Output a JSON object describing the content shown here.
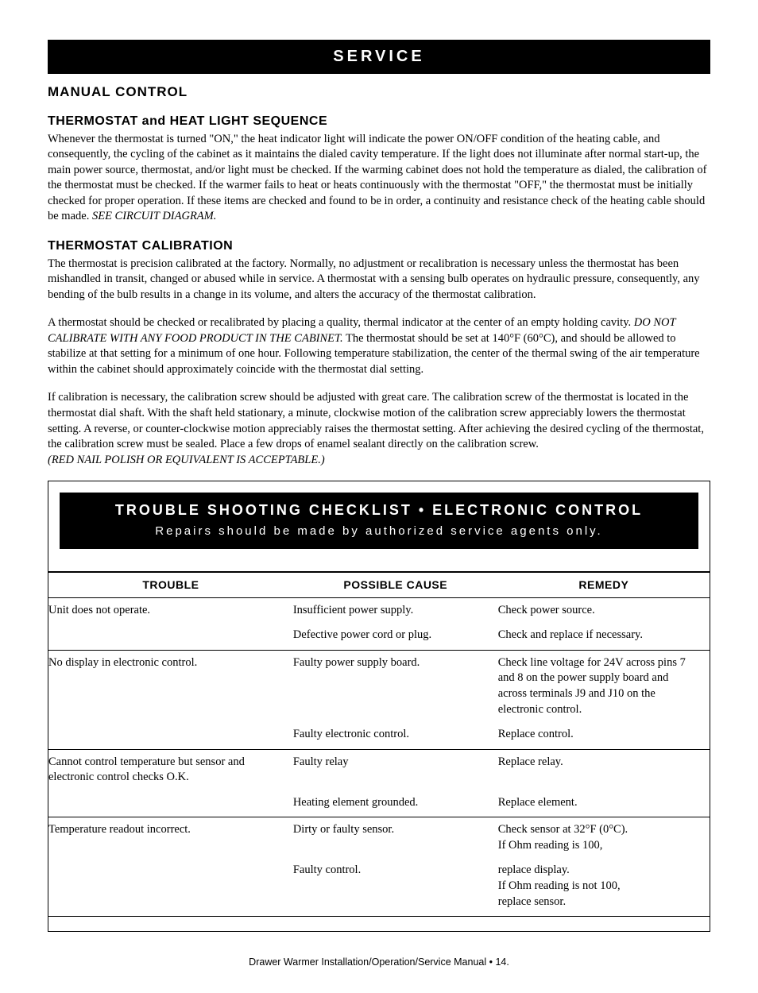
{
  "banner": {
    "title": "SERVICE"
  },
  "section_manual_control": {
    "heading": "MANUAL CONTROL",
    "sub1_heading": "THERMOSTAT and HEAT LIGHT SEQUENCE",
    "sub1_para1": "Whenever the thermostat is turned \"ON,\" the heat indicator light will indicate the power ON/OFF condition of the heating cable, and consequently, the cycling of the cabinet as it maintains the dialed cavity temperature.  If the light does not illuminate after normal start-up, the main power source, thermostat, and/or light must be checked.  If the warming cabinet does not hold the temperature as dialed, the calibration of the thermostat must be checked.  If the warmer fails to heat or heats continuously with the thermostat \"OFF,\" the thermostat must be initially checked for proper operation.  If these items are checked and found to be in order, a continuity and resistance check of the heating cable should be made.  ",
    "sub1_note": "SEE CIRCUIT DIAGRAM.",
    "sub2_heading": "THERMOSTAT CALIBRATION",
    "sub2_para1": "The thermostat is precision calibrated at the factory.  Normally, no adjustment or recalibration is necessary unless the thermostat has been mishandled in transit, changed or abused while in service.  A thermostat with a sensing bulb operates on hydraulic pressure, consequently, any bending of the bulb results in a change in its volume, and alters the accuracy of the thermostat calibration.",
    "sub2_para2a": "A thermostat should be checked or recalibrated by placing a quality, thermal indicator at the center of an empty holding cavity.  ",
    "sub2_para2_note": "DO NOT CALIBRATE WITH ANY FOOD PRODUCT IN THE CABINET.",
    "sub2_para2b": "  The thermostat should be set at 140°F (60°C), and should be allowed to stabilize at that setting for a minimum of one hour.  Following temperature stabilization, the center of the thermal swing of the air temperature within the cabinet should approximately coincide with the thermostat dial setting.",
    "sub2_para3": "If calibration is necessary, the calibration screw should be adjusted with great care.  The calibration screw of the thermostat is located in the thermostat dial shaft.  With the shaft held stationary, a minute, clockwise motion of the calibration screw appreciably lowers the thermostat setting.  A reverse, or counter-clockwise motion appreciably raises the thermostat setting.  After achieving the desired cycling of the thermostat, the calibration screw must be sealed.  Place a few drops of enamel sealant directly on the calibration screw.",
    "sub2_para3_note": "(RED NAIL POLISH OR EQUIVALENT IS ACCEPTABLE.)"
  },
  "troubleshoot": {
    "banner_title": "TROUBLE SHOOTING CHECKLIST • ELECTRONIC CONTROL",
    "banner_sub": "Repairs should be made by authorized service agents only.",
    "columns": [
      "TROUBLE",
      "POSSIBLE CAUSE",
      "REMEDY"
    ],
    "rows": [
      {
        "t": "Unit does not operate.",
        "c": "Insufficient power supply.",
        "r": "Check power source.",
        "last": false
      },
      {
        "t": "",
        "c": "Defective power cord or plug.",
        "r": "Check and replace if necessary.",
        "last": true
      },
      {
        "t": "No display in electronic control.",
        "c": "Faulty power supply board.",
        "r": "Check line voltage for 24V across pins 7 and 8 on the power supply board and across terminals J9 and J10 on the electronic control.",
        "last": false
      },
      {
        "t": "",
        "c": "Faulty electronic control.",
        "r": "Replace control.",
        "last": true
      },
      {
        "t": "Cannot control temperature but sensor and electronic control checks O.K.",
        "c": "Faulty relay",
        "r": "Replace relay.",
        "last": false
      },
      {
        "t": "",
        "c": "Heating element grounded.",
        "r": "Replace element.",
        "last": true
      },
      {
        "t": "Temperature readout incorrect.",
        "c": "Dirty or faulty sensor.",
        "r": "Check sensor at 32°F (0°C).\nIf Ohm reading is 100,",
        "last": false
      },
      {
        "t": "",
        "c": "Faulty control.",
        "r": "replace display.\nIf Ohm reading is not 100,\nreplace sensor.",
        "last": true
      }
    ]
  },
  "footer": {
    "text": "Drawer Warmer Installation/Operation/Service Manual • 14."
  }
}
